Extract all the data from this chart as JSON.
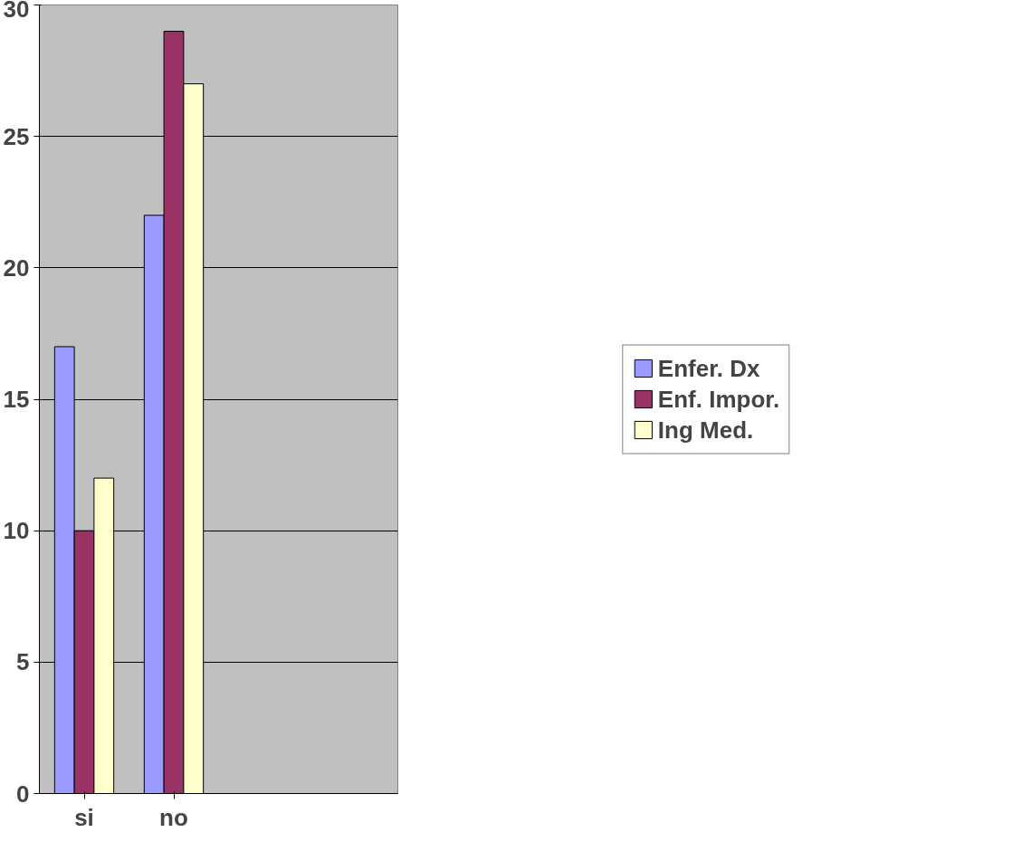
{
  "chart_data": {
    "type": "bar",
    "categories": [
      "si",
      "no",
      null,
      null
    ],
    "series": [
      {
        "name": "Enfer. Dx",
        "color": "#9999ff",
        "values": [
          17,
          22,
          null,
          null
        ]
      },
      {
        "name": "Enf. Impor.",
        "color": "#993366",
        "values": [
          10,
          29,
          null,
          null
        ]
      },
      {
        "name": "Ing Med.",
        "color": "#ffffcc",
        "values": [
          12,
          27,
          null,
          null
        ]
      }
    ],
    "ylim": [
      0,
      30
    ],
    "yticks": [
      0,
      5,
      10,
      15,
      20,
      25,
      30
    ],
    "grid": "y",
    "legend": "right"
  }
}
